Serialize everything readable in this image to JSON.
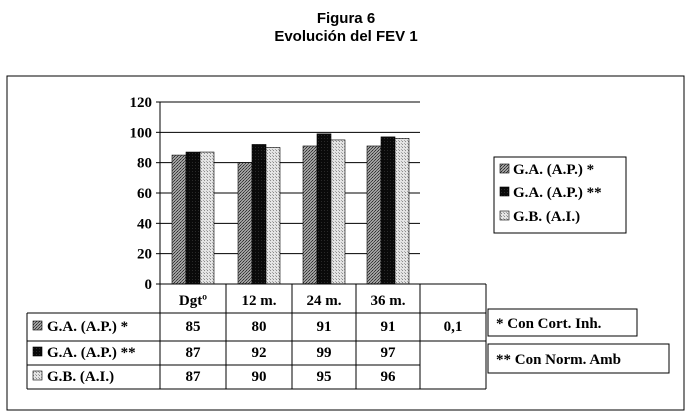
{
  "figure": {
    "title": "Figura 6",
    "subtitle": "Evolución del FEV 1"
  },
  "chart_data": {
    "type": "bar",
    "categories": [
      "Dgtº",
      "12 m.",
      "24 m.",
      "36 m."
    ],
    "series": [
      {
        "name": "G.A. (A.P.) *",
        "values": [
          85,
          80,
          91,
          91
        ],
        "color": "#808080",
        "pattern": "dotted-dark"
      },
      {
        "name": "G.A. (A.P.) **",
        "values": [
          87,
          92,
          99,
          97
        ],
        "color": "#111111",
        "pattern": "solid-black"
      },
      {
        "name": "G.B. (A.I.)",
        "values": [
          87,
          90,
          95,
          96
        ],
        "color": "#c8c8c8",
        "pattern": "dotted-light"
      }
    ],
    "extra_column": [
      "0,1",
      "",
      ""
    ],
    "ylim": [
      0,
      120
    ],
    "yticks": [
      0,
      20,
      40,
      60,
      80,
      100,
      120
    ],
    "grid": true,
    "legend_position": "right",
    "notes": [
      "* Con Cort. Inh.",
      "** Con Norm. Amb"
    ]
  }
}
